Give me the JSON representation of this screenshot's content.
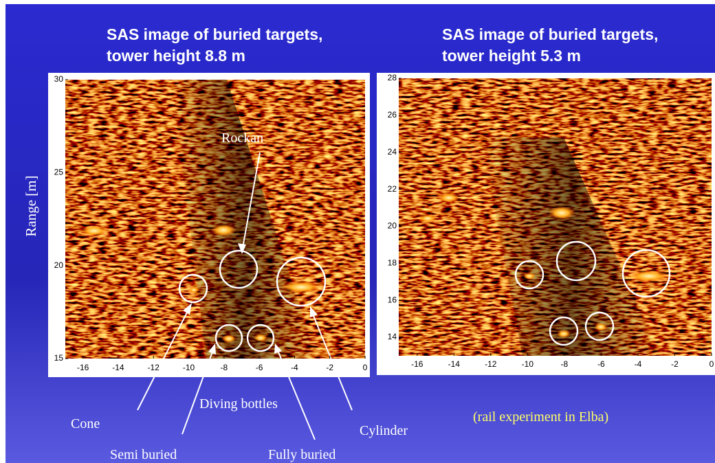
{
  "slide": {
    "panels": [
      {
        "title": [
          "SAS image of buried targets,",
          "tower height 8.8 m"
        ],
        "y_label": "Range [m]",
        "yticks": [
          30,
          25,
          20,
          15
        ],
        "xticks": [
          -16,
          -14,
          -12,
          -10,
          -8,
          -6,
          -4,
          -2,
          0
        ]
      },
      {
        "title": [
          "SAS image of buried targets,",
          "tower height 5.3 m"
        ],
        "yticks": [
          28,
          26,
          24,
          22,
          20,
          18,
          16,
          14
        ],
        "xticks": [
          -16,
          -14,
          -12,
          -10,
          -8,
          -6,
          -4,
          -2,
          0
        ]
      }
    ],
    "annotations": [
      "Rockan",
      "Cone",
      "Diving bottles",
      "Semi buried",
      "Fully buried",
      "Cylinder"
    ],
    "caption": "(rail experiment in Elba)"
  }
}
